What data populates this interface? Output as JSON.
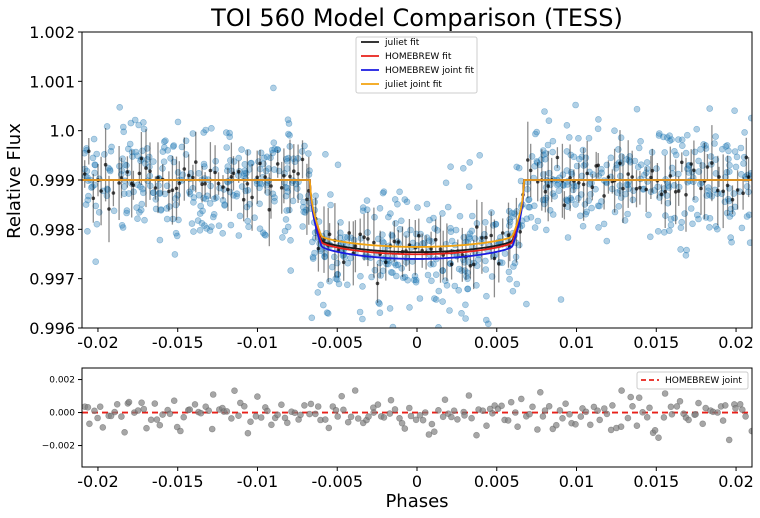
{
  "chart_data": [
    {
      "type": "scatter",
      "title": "TOI 560 Model Comparison (TESS)",
      "xlabel": "",
      "ylabel": "Relative Flux",
      "xlim": [
        -0.021,
        0.021
      ],
      "ylim": [
        0.996,
        1.002
      ],
      "xticks": [
        -0.02,
        -0.015,
        -0.01,
        -0.005,
        0,
        0.005,
        0.01,
        0.015,
        0.02
      ],
      "xtick_labels": [
        "-0.02",
        "-0.015",
        "-0.01",
        "-0.005",
        "0",
        "0.005",
        "0.01",
        "0.015",
        "0.02"
      ],
      "yticks": [
        0.996,
        0.997,
        0.998,
        0.999,
        1.0,
        1.001,
        1.002
      ],
      "ytick_labels": [
        "0.996",
        "0.997",
        "0.998",
        "0.999",
        "1.0",
        "1.001",
        "1.002"
      ],
      "legend": {
        "placement": "top-center",
        "entries": [
          {
            "name": "juliet fit",
            "color": "#1a1a1a"
          },
          {
            "name": "HOMEBREW fit",
            "color": "#e8201a"
          },
          {
            "name": "HOMEBREW joint fit",
            "color": "#1a1ae0"
          },
          {
            "name": "juliet joint fit",
            "color": "#f2a30f"
          }
        ]
      },
      "models": {
        "baseline": 0.999,
        "ingress_egress_phase": [
          -0.0067,
          0.0067
        ],
        "ingress_duration": 0.0007,
        "series": [
          {
            "name": "juliet fit",
            "color": "#1a1a1a",
            "depth": 0.00138
          },
          {
            "name": "HOMEBREW fit",
            "color": "#e8201a",
            "depth": 0.00142
          },
          {
            "name": "HOMEBREW joint fit",
            "color": "#1a1ae0",
            "depth": 0.00151
          },
          {
            "name": "juliet joint fit",
            "color": "#f2a30f",
            "depth": 0.00128
          }
        ]
      },
      "raw_points": {
        "color": "#1f77b4",
        "count": 900,
        "scatter_sigma": 0.0006
      },
      "binned_points": {
        "color": "#000000",
        "count": 160,
        "typical_error": 0.0005
      }
    },
    {
      "type": "scatter",
      "xlabel": "Phases",
      "ylabel": "",
      "xlim": [
        -0.021,
        0.021
      ],
      "ylim": [
        -0.0033,
        0.0027
      ],
      "xticks": [
        -0.02,
        -0.015,
        -0.01,
        -0.005,
        0,
        0.005,
        0.01,
        0.015,
        0.02
      ],
      "xtick_labels": [
        "-0.02",
        "-0.015",
        "-0.01",
        "-0.005",
        "0",
        "0.005",
        "0.01",
        "0.015",
        "0.02"
      ],
      "yticks": [
        -0.002,
        0.0,
        0.002
      ],
      "ytick_labels": [
        "−0.002",
        "0.000",
        "0.002"
      ],
      "legend": {
        "placement": "top-right",
        "entries": [
          {
            "name": "HOMEBREW joint",
            "color": "#e8201a",
            "style": "dashed"
          }
        ]
      },
      "zero_line": 0,
      "residual_points": {
        "color": "#808080",
        "count": 200,
        "scatter_sigma": 0.0006
      }
    }
  ]
}
